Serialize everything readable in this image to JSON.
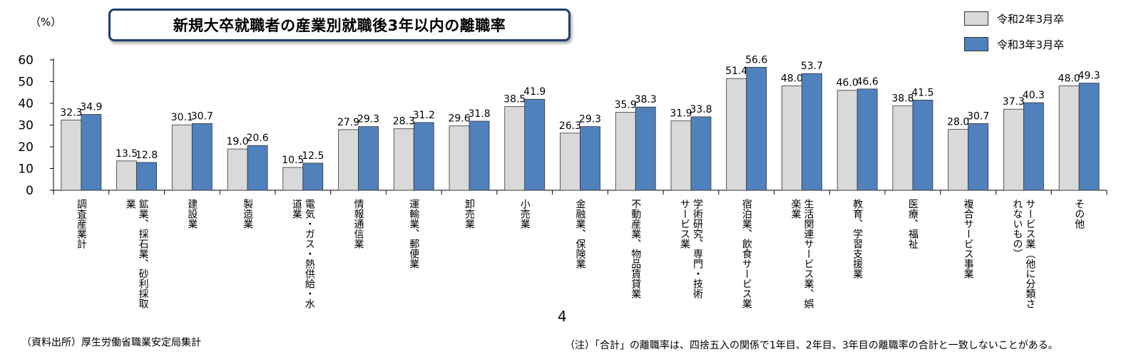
{
  "unit_label": "（%）",
  "title": "新規大卒就職者の産業別就職後3年以内の離職率",
  "source": "（資料出所）厚生労働省職業安定局集計",
  "page_number": "4",
  "note": "（注）「合計」の離職率は、四捨五入の関係で1年目、2年目、3年目の離職率の合計と一致しないことがある。",
  "colors": {
    "series1": "#d9d9d9",
    "series2": "#4f81bd",
    "bar_stroke": "#333333",
    "axis": "#000000"
  },
  "chart_data": {
    "type": "bar",
    "title": "新規大卒就職者の産業別就職後3年以内の離職率",
    "ylabel": "（%）",
    "ylim": [
      0,
      60
    ],
    "yticks": [
      0,
      10,
      20,
      30,
      40,
      50,
      60
    ],
    "grid": false,
    "legend_position": "top-right",
    "categories": [
      "調査産業計",
      "鉱業、採石業、砂利採取業",
      "建設業",
      "製造業",
      "電気・ガス・熱供給・水道業",
      "情報通信業",
      "運輸業、郵便業",
      "卸売業",
      "小売業",
      "金融業、保険業",
      "不動産業、物品賃貸業",
      "学術研究、専門・技術サービス業",
      "宿泊業、飲食サービス業",
      "生活関連サービス業、娯楽業",
      "教育、学習支援業",
      "医療、福祉",
      "複合サービス事業",
      "サービス業（他に分類されないもの）",
      "その他"
    ],
    "category_lines": [
      [
        "調査産業計"
      ],
      [
        "鉱業、採石業、砂利採取",
        "業"
      ],
      [
        "建設業"
      ],
      [
        "製造業"
      ],
      [
        "電気・ガス・熱供給・水",
        "道業"
      ],
      [
        "情報通信業"
      ],
      [
        "運輸業、郵便業"
      ],
      [
        "卸売業"
      ],
      [
        "小売業"
      ],
      [
        "金融業、保険業"
      ],
      [
        "不動産業、物品賃貸業"
      ],
      [
        "学術研究、専門・技術",
        "サービス業"
      ],
      [
        "宿泊業、飲食サービス業"
      ],
      [
        "生活関連サービス業、娯",
        "楽業"
      ],
      [
        "教育、学習支援業"
      ],
      [
        "医療、福祉"
      ],
      [
        "複合サービス事業"
      ],
      [
        "サービス業（他に分類さ",
        "れないもの）"
      ],
      [
        "その他"
      ]
    ],
    "series": [
      {
        "name": "令和2年3月卒",
        "values": [
          32.3,
          13.5,
          30.1,
          19.0,
          10.5,
          27.9,
          28.3,
          29.6,
          38.5,
          26.3,
          35.9,
          31.9,
          51.4,
          48.0,
          46.0,
          38.8,
          28.0,
          37.3,
          48.0
        ]
      },
      {
        "name": "令和3年3月卒",
        "values": [
          34.9,
          12.8,
          30.7,
          20.6,
          12.5,
          29.3,
          31.2,
          31.8,
          41.9,
          29.3,
          38.3,
          33.8,
          56.6,
          53.7,
          46.6,
          41.5,
          30.7,
          40.3,
          49.3
        ]
      }
    ]
  }
}
